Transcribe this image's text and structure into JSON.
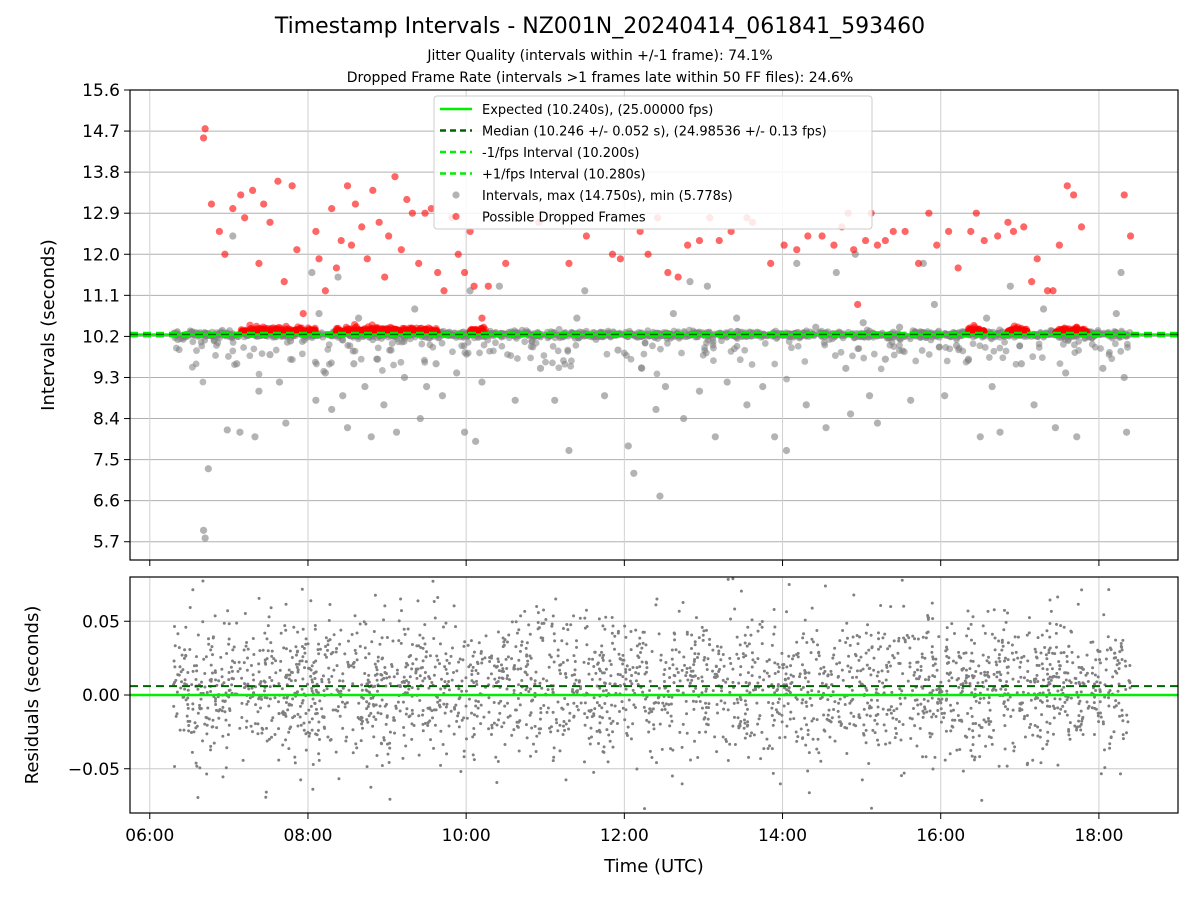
{
  "figure": {
    "title": "Timestamp Intervals - NZ001N_20240414_061841_593460",
    "subtitle_jitter": "Jitter Quality (intervals within +/-1 frame): 74.1%",
    "subtitle_dropped": "Dropped Frame Rate (intervals >1 frames late within 50 FF files): 24.6%"
  },
  "chart_data": [
    {
      "type": "scatter",
      "panel": "intervals",
      "ylabel": "Intervals (seconds)",
      "xlabel": "",
      "x_unit": "hours UTC",
      "xlim": [
        5.75,
        19.0
      ],
      "ylim": [
        5.3,
        15.6
      ],
      "yticks": [
        5.7,
        6.6,
        7.5,
        8.4,
        9.3,
        10.2,
        11.1,
        12.0,
        12.9,
        13.8,
        14.7,
        15.6
      ],
      "ytick_labels": [
        "5.7",
        "6.6",
        "7.5",
        "8.4",
        "9.3",
        "10.2",
        "11.1",
        "12.0",
        "12.9",
        "13.8",
        "14.7",
        "15.6"
      ],
      "grid": true,
      "legend_position": "upper-center",
      "legend": [
        {
          "label": "Expected (10.240s), (25.00000 fps)",
          "style": "solid",
          "color": "#00ee00"
        },
        {
          "label": "Median (10.246 +/- 0.052 s), (24.98536 +/- 0.13 fps)",
          "style": "dashed",
          "color": "#006400"
        },
        {
          "label": "-1/fps Interval (10.200s)",
          "style": "dashed",
          "color": "#00ee00"
        },
        {
          "label": "+1/fps Interval (10.280s)",
          "style": "dashed",
          "color": "#00ee00"
        },
        {
          "label": "Intervals, max (14.750s), min (5.778s)",
          "style": "marker",
          "color": "#808080"
        },
        {
          "label": "Possible Dropped Frames",
          "style": "marker",
          "color": "#ff0000"
        }
      ],
      "reference_lines": {
        "expected": 10.24,
        "median": 10.246,
        "minus_one_frame": 10.2,
        "plus_one_frame": 10.28
      },
      "series": [
        {
          "name": "Intervals, max (14.750s), min (5.778s)",
          "color": "#808080",
          "x": [
            6.68,
            6.7,
            6.74,
            6.98,
            7.05,
            7.1,
            7.14,
            7.33,
            7.38,
            7.52,
            7.64,
            7.72,
            7.78,
            8.05,
            8.1,
            8.14,
            8.22,
            8.3,
            8.38,
            8.44,
            8.5,
            8.58,
            8.64,
            8.72,
            8.8,
            8.88,
            8.96,
            9.05,
            9.12,
            9.22,
            9.35,
            9.42,
            9.5,
            9.62,
            9.7,
            9.88,
            9.98,
            10.05,
            10.12,
            10.2,
            10.42,
            10.62,
            10.94,
            11.12,
            11.3,
            11.4,
            11.5,
            11.75,
            11.92,
            12.05,
            12.12,
            12.22,
            12.4,
            12.45,
            12.52,
            12.62,
            12.75,
            12.83,
            12.95,
            13.05,
            13.15,
            13.3,
            13.42,
            13.55,
            13.75,
            13.9,
            14.05,
            14.18,
            14.3,
            14.42,
            14.55,
            14.68,
            14.8,
            14.86,
            14.92,
            15.02,
            15.1,
            15.2,
            15.3,
            15.48,
            15.62,
            15.78,
            15.92,
            16.05,
            16.2,
            16.35,
            16.5,
            16.58,
            16.65,
            16.75,
            16.88,
            17.02,
            17.18,
            17.3,
            17.45,
            17.58,
            17.72,
            17.88,
            18.05,
            18.22,
            18.28,
            18.32,
            18.35
          ],
          "y": [
            5.95,
            5.78,
            7.3,
            8.15,
            12.4,
            9.6,
            8.1,
            8.0,
            9.0,
            9.8,
            9.2,
            8.3,
            10.1,
            11.6,
            8.8,
            10.7,
            9.4,
            8.6,
            11.5,
            8.9,
            8.2,
            9.6,
            10.6,
            9.1,
            8.0,
            9.7,
            8.7,
            9.9,
            8.1,
            9.3,
            10.8,
            8.4,
            9.1,
            9.6,
            8.9,
            9.4,
            8.1,
            11.2,
            7.9,
            9.2,
            11.3,
            8.8,
            9.5,
            8.8,
            7.7,
            10.6,
            11.2,
            8.9,
            9.9,
            7.8,
            7.2,
            9.5,
            8.6,
            6.7,
            9.1,
            10.7,
            8.4,
            11.4,
            9.0,
            11.3,
            8.0,
            9.2,
            10.6,
            8.7,
            9.1,
            8.0,
            7.7,
            11.8,
            8.7,
            10.4,
            8.2,
            11.6,
            9.5,
            8.5,
            12.0,
            10.5,
            8.9,
            8.3,
            9.7,
            10.4,
            8.8,
            11.8,
            10.9,
            8.9,
            10.0,
            9.7,
            8.0,
            10.6,
            9.1,
            8.1,
            11.3,
            9.6,
            8.7,
            10.8,
            8.2,
            9.4,
            8.0,
            10.2,
            9.5,
            10.7,
            11.6,
            9.3,
            8.1
          ]
        },
        {
          "name": "Possible Dropped Frames",
          "color": "#ff0000",
          "x": [
            6.68,
            6.7,
            6.78,
            6.88,
            6.95,
            7.05,
            7.15,
            7.2,
            7.3,
            7.38,
            7.44,
            7.52,
            7.62,
            7.7,
            7.8,
            7.86,
            7.94,
            8.1,
            8.14,
            8.22,
            8.3,
            8.36,
            8.42,
            8.5,
            8.55,
            8.6,
            8.68,
            8.75,
            8.82,
            8.9,
            8.97,
            9.02,
            9.1,
            9.18,
            9.25,
            9.32,
            9.4,
            9.48,
            9.56,
            9.64,
            9.72,
            9.82,
            9.9,
            9.98,
            10.05,
            10.1,
            10.2,
            10.28,
            10.5,
            10.92,
            11.3,
            11.52,
            11.85,
            11.95,
            12.2,
            12.3,
            12.42,
            12.55,
            12.68,
            12.8,
            12.95,
            13.08,
            13.2,
            13.35,
            13.55,
            13.62,
            13.85,
            14.02,
            14.18,
            14.32,
            14.5,
            14.65,
            14.75,
            14.83,
            14.9,
            14.95,
            15.05,
            15.12,
            15.2,
            15.3,
            15.4,
            15.55,
            15.72,
            15.85,
            15.95,
            16.1,
            16.22,
            16.38,
            16.45,
            16.55,
            16.72,
            16.85,
            16.92,
            17.05,
            17.15,
            17.22,
            17.35,
            17.42,
            17.5,
            17.6,
            17.68,
            17.78,
            18.32,
            18.4
          ],
          "y": [
            14.55,
            14.75,
            13.1,
            12.5,
            12.0,
            13.0,
            13.3,
            12.8,
            13.4,
            11.8,
            13.1,
            12.7,
            13.6,
            11.4,
            13.5,
            12.1,
            10.7,
            12.5,
            11.9,
            11.2,
            13.0,
            11.7,
            12.3,
            13.5,
            12.2,
            13.1,
            12.6,
            11.9,
            13.4,
            12.7,
            11.5,
            12.4,
            13.7,
            12.1,
            13.2,
            12.9,
            11.8,
            12.9,
            13.0,
            11.6,
            11.2,
            12.8,
            12.0,
            11.6,
            12.5,
            11.3,
            10.6,
            11.3,
            11.8,
            12.7,
            11.8,
            12.4,
            12.0,
            11.9,
            12.5,
            12.0,
            12.8,
            11.6,
            11.5,
            12.2,
            12.3,
            12.8,
            12.3,
            12.5,
            12.8,
            12.7,
            11.8,
            12.2,
            12.1,
            12.4,
            12.4,
            12.2,
            12.6,
            12.9,
            12.1,
            10.9,
            12.3,
            12.9,
            12.2,
            12.3,
            12.5,
            12.5,
            11.8,
            12.9,
            12.2,
            12.5,
            11.7,
            12.5,
            12.9,
            12.3,
            12.4,
            12.7,
            12.5,
            12.6,
            11.4,
            11.9,
            11.2,
            11.2,
            12.2,
            13.5,
            13.3,
            12.6,
            13.3,
            12.4
          ]
        }
      ]
    },
    {
      "type": "scatter",
      "panel": "residuals",
      "ylabel": "Residuals (seconds)",
      "xlabel": "Time (UTC)",
      "x_unit": "hours UTC",
      "xlim": [
        5.75,
        19.0
      ],
      "ylim": [
        -0.08,
        0.08
      ],
      "yticks": [
        -0.05,
        0.0,
        0.05
      ],
      "ytick_labels": [
        "−0.05",
        "0.00",
        "0.05"
      ],
      "xticks": [
        6,
        8,
        10,
        12,
        14,
        16,
        18
      ],
      "xtick_labels": [
        "06:00",
        "08:00",
        "10:00",
        "12:00",
        "14:00",
        "16:00",
        "18:00"
      ],
      "grid": true,
      "reference_lines": {
        "expected": 0.0,
        "median": 0.006
      },
      "residual_std": 0.052,
      "marker_color": "#808080",
      "x_range_of_points": [
        6.3,
        18.4
      ]
    }
  ]
}
